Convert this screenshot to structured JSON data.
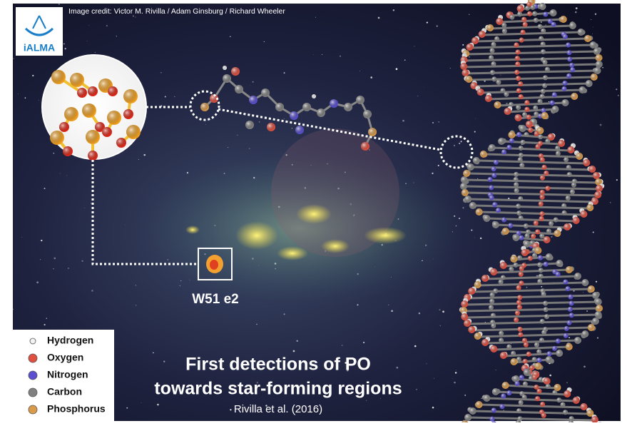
{
  "credit": "Image credit: Victor M. Rivilla / Adam Ginsburg / Richard Wheeler",
  "logo": "iALMA",
  "source_label": "W51 e2",
  "legend": [
    {
      "label": "Hydrogen",
      "color": "#f2f2f2"
    },
    {
      "label": "Oxygen",
      "color": "#e05040"
    },
    {
      "label": "Nitrogen",
      "color": "#5a4fd0"
    },
    {
      "label": "Carbon",
      "color": "#808080"
    },
    {
      "label": "Phosphorus",
      "color": "#d99a4a"
    }
  ],
  "title": [
    "First detections of PO",
    "towards star-forming regions"
  ],
  "citation": "Rivilla et al. (2016)"
}
